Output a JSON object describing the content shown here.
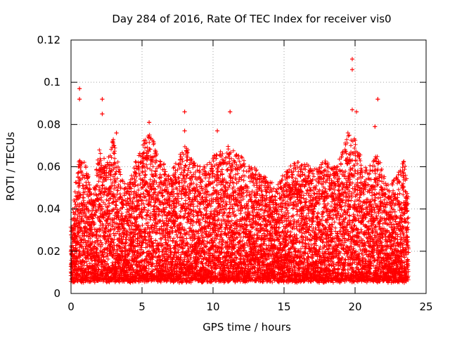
{
  "chart_data": {
    "type": "scatter",
    "title": "Day 284 of 2016, Rate Of TEC Index for receiver vis0",
    "xlabel": "GPS time / hours",
    "ylabel": "ROTI / TECUs",
    "xlim": [
      0,
      25
    ],
    "ylim": [
      0,
      0.12
    ],
    "x_ticks": [
      0,
      5,
      10,
      15,
      20,
      25
    ],
    "x_tick_labels": [
      "0",
      "5",
      "10",
      "15",
      "20",
      "25"
    ],
    "y_ticks": [
      0,
      0.02,
      0.04,
      0.06,
      0.08,
      0.1,
      0.12
    ],
    "y_tick_labels": [
      "0",
      "0.02",
      "0.04",
      "0.06",
      "0.08",
      "0.1",
      "0.12"
    ],
    "grid": true,
    "marker": "+",
    "series": [
      {
        "name": "ROTI",
        "color": "#ff0000",
        "x_range": [
          0,
          23.75
        ],
        "sample_interval_hours": 0.025,
        "typical_range": [
          0.005,
          0.045
        ],
        "outliers": [
          {
            "x": 0.6,
            "y": 0.097
          },
          {
            "x": 0.6,
            "y": 0.092
          },
          {
            "x": 2.2,
            "y": 0.092
          },
          {
            "x": 2.2,
            "y": 0.085
          },
          {
            "x": 3.2,
            "y": 0.076
          },
          {
            "x": 5.5,
            "y": 0.081
          },
          {
            "x": 8.0,
            "y": 0.086
          },
          {
            "x": 8.0,
            "y": 0.077
          },
          {
            "x": 11.2,
            "y": 0.086
          },
          {
            "x": 10.3,
            "y": 0.077
          },
          {
            "x": 19.8,
            "y": 0.111
          },
          {
            "x": 19.8,
            "y": 0.106
          },
          {
            "x": 19.8,
            "y": 0.087
          },
          {
            "x": 20.1,
            "y": 0.086
          },
          {
            "x": 21.6,
            "y": 0.092
          },
          {
            "x": 21.4,
            "y": 0.079
          }
        ],
        "envelope": [
          [
            0.0,
            0.03
          ],
          [
            0.5,
            0.065
          ],
          [
            1.0,
            0.062
          ],
          [
            1.5,
            0.045
          ],
          [
            2.0,
            0.068
          ],
          [
            2.5,
            0.06
          ],
          [
            3.0,
            0.072
          ],
          [
            3.5,
            0.055
          ],
          [
            4.0,
            0.05
          ],
          [
            4.5,
            0.06
          ],
          [
            5.0,
            0.07
          ],
          [
            5.5,
            0.075
          ],
          [
            6.0,
            0.068
          ],
          [
            6.5,
            0.062
          ],
          [
            7.0,
            0.055
          ],
          [
            7.5,
            0.062
          ],
          [
            8.0,
            0.07
          ],
          [
            8.5,
            0.062
          ],
          [
            9.0,
            0.058
          ],
          [
            9.5,
            0.06
          ],
          [
            10.0,
            0.065
          ],
          [
            10.5,
            0.066
          ],
          [
            11.0,
            0.068
          ],
          [
            11.5,
            0.066
          ],
          [
            12.0,
            0.064
          ],
          [
            12.5,
            0.06
          ],
          [
            13.0,
            0.058
          ],
          [
            13.5,
            0.055
          ],
          [
            14.0,
            0.052
          ],
          [
            14.5,
            0.05
          ],
          [
            15.0,
            0.058
          ],
          [
            15.5,
            0.06
          ],
          [
            16.0,
            0.062
          ],
          [
            16.5,
            0.06
          ],
          [
            17.0,
            0.058
          ],
          [
            17.5,
            0.06
          ],
          [
            18.0,
            0.062
          ],
          [
            18.5,
            0.058
          ],
          [
            19.0,
            0.066
          ],
          [
            19.5,
            0.075
          ],
          [
            20.0,
            0.072
          ],
          [
            20.5,
            0.062
          ],
          [
            21.0,
            0.058
          ],
          [
            21.5,
            0.066
          ],
          [
            22.0,
            0.055
          ],
          [
            22.5,
            0.05
          ],
          [
            23.0,
            0.058
          ],
          [
            23.5,
            0.063
          ],
          [
            23.75,
            0.045
          ]
        ]
      }
    ]
  }
}
